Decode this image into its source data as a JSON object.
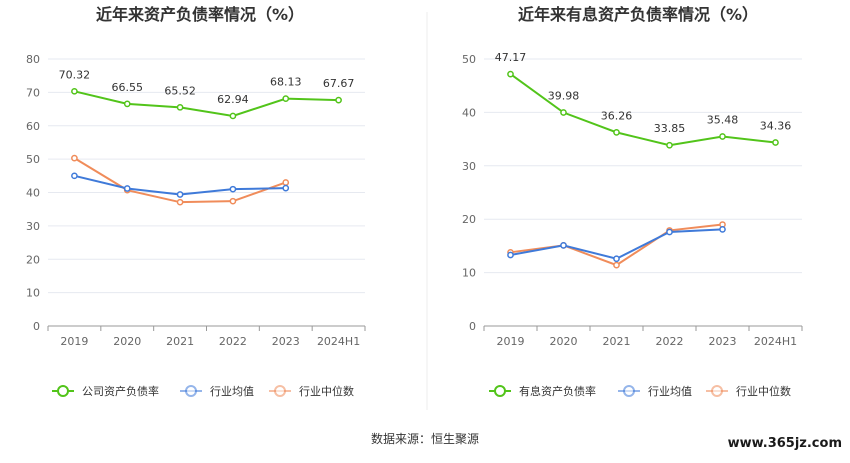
{
  "source_text": "数据来源：恒生聚源",
  "watermark": "www.365jz.com",
  "chart_data": [
    {
      "type": "line",
      "title": "近年来资产负债率情况（%）",
      "categories": [
        "2019",
        "2020",
        "2021",
        "2022",
        "2023",
        "2024H1"
      ],
      "ylim": [
        0,
        80
      ],
      "yticks": [
        0,
        10,
        20,
        30,
        40,
        50,
        60,
        70,
        80
      ],
      "grid": true,
      "legend_position": "bottom",
      "series": [
        {
          "name": "公司资产负债率",
          "color": "#52c41a",
          "values": [
            70.32,
            66.55,
            65.52,
            62.94,
            68.13,
            67.67
          ],
          "labels": [
            "70.32",
            "66.55",
            "65.52",
            "62.94",
            "68.13",
            "67.67"
          ]
        },
        {
          "name": "行业均值",
          "color": "#3f7ad9",
          "values": [
            45.0,
            41.2,
            39.4,
            41.0,
            41.3,
            null
          ]
        },
        {
          "name": "行业中位数",
          "color": "#f08c5a",
          "values": [
            50.3,
            40.7,
            37.1,
            37.4,
            43.0,
            null
          ]
        }
      ]
    },
    {
      "type": "line",
      "title": "近年来有息资产负债率情况（%）",
      "categories": [
        "2019",
        "2020",
        "2021",
        "2022",
        "2023",
        "2024H1"
      ],
      "ylim": [
        0,
        50
      ],
      "yticks": [
        0,
        10,
        20,
        30,
        40,
        50
      ],
      "grid": true,
      "legend_position": "bottom",
      "series": [
        {
          "name": "有息资产负债率",
          "color": "#52c41a",
          "values": [
            47.17,
            39.98,
            36.26,
            33.85,
            35.48,
            34.36
          ],
          "labels": [
            "47.17",
            "39.98",
            "36.26",
            "33.85",
            "35.48",
            "34.36"
          ]
        },
        {
          "name": "行业均值",
          "color": "#3f7ad9",
          "values": [
            13.3,
            15.1,
            12.6,
            17.6,
            18.1,
            null
          ]
        },
        {
          "name": "行业中位数",
          "color": "#f08c5a",
          "values": [
            13.8,
            15.1,
            11.4,
            17.9,
            19.0,
            null
          ]
        }
      ]
    }
  ]
}
